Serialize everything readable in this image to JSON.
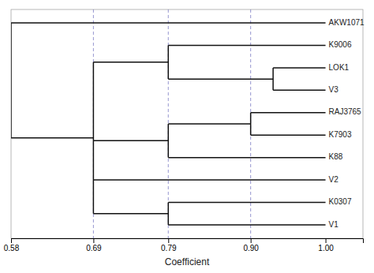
{
  "chart_data": {
    "type": "dendrogram",
    "xlabel": "Coefficient",
    "xlim": [
      0.58,
      1.05
    ],
    "xticks": [
      0.58,
      0.69,
      0.79,
      {
        "value": 0.9,
        "label": "0.90"
      },
      {
        "value": 1,
        "label": "1.00"
      }
    ],
    "color": "#111111",
    "leaf_height": 1,
    "reference_lines": {
      "values": [
        0.69,
        0.79,
        0.9
      ],
      "color": "#6666bb"
    },
    "tree": {
      "height": 0.58,
      "children": [
        "AKW1071",
        {
          "height": 0.69,
          "children": [
            {
              "height": 0.79,
              "children": [
                "K9006",
                {
                  "height": 0.93,
                  "children": [
                    "LOK1",
                    "V3"
                  ]
                }
              ]
            },
            {
              "height": 0.79,
              "children": [
                {
                  "height": 0.9,
                  "children": [
                    "RAJ3765",
                    "K7903"
                  ]
                },
                "K88"
              ]
            },
            "V2",
            {
              "height": 0.79,
              "children": [
                "K0307",
                "V1"
              ]
            }
          ]
        }
      ]
    }
  }
}
